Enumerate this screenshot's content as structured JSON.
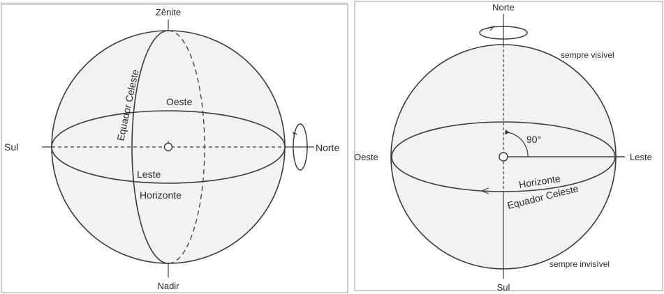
{
  "left_diagram": {
    "zenith": "Zênite",
    "nadir": "Nadir",
    "south": "Sul",
    "north": "Norte",
    "west": "Oeste",
    "east": "Leste",
    "horizon": "Horizonte",
    "celestial_equator": "Equador Celeste"
  },
  "right_diagram": {
    "north": "Norte",
    "south": "Sul",
    "west": "Oeste",
    "east": "Leste",
    "always_visible": "sempre visível",
    "always_invisible": "sempre invisível",
    "angle": "90°",
    "horizon": "Horizonte",
    "celestial_equator": "Equador Celeste"
  },
  "colors": {
    "line": "#3a3a3a",
    "sphere_fill": "#f1f3f3",
    "panel_border": "#9a9a9a"
  }
}
